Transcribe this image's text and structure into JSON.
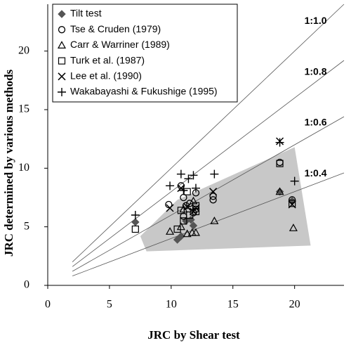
{
  "chart_data": {
    "type": "scatter",
    "x_label": "JRC by Shear test",
    "y_label": "JRC determined by various methods",
    "xlim": [
      0,
      24
    ],
    "ylim": [
      0,
      24
    ],
    "xticks": [
      0,
      5,
      10,
      15,
      20
    ],
    "yticks": [
      0,
      5,
      10,
      15,
      20
    ],
    "shaded_region": {
      "color": "#c8c8c8",
      "x": [
        8,
        7.5,
        10.5,
        20,
        21.3
      ],
      "y": [
        2.9,
        4.2,
        7.3,
        11.8,
        3.4
      ]
    },
    "reference_lines": [
      {
        "label": "1:1.0",
        "slope": 1.0,
        "x": [
          2,
          24
        ]
      },
      {
        "label": "1:0.8",
        "slope": 0.8,
        "x": [
          2,
          24
        ]
      },
      {
        "label": "1:0.6",
        "slope": 0.6,
        "x": [
          2,
          24
        ]
      },
      {
        "label": "1:0.4",
        "slope": 0.4,
        "x": [
          2,
          24
        ]
      }
    ],
    "series": [
      {
        "name": "Tilt test",
        "marker": "diamond",
        "color": "#555555",
        "x": [
          7.1,
          10.5,
          10.8,
          11.2,
          11.6,
          11.8,
          18.8,
          19.8
        ],
        "values": [
          5.4,
          3.9,
          4.2,
          5.5,
          5.6,
          5.1,
          8.0,
          7.2
        ]
      },
      {
        "name": "Tse & Cruden (1979)",
        "marker": "circle",
        "color": "#000000",
        "x": [
          9.8,
          10.8,
          11.0,
          11.2,
          11.5,
          12.0,
          12.0,
          13.4,
          13.4,
          18.8,
          19.8,
          11.0,
          11.8
        ],
        "values": [
          6.9,
          8.5,
          7.5,
          6.8,
          7.0,
          7.9,
          6.5,
          7.6,
          7.3,
          10.5,
          7.3,
          5.9,
          6.2
        ]
      },
      {
        "name": "Carr & Warriner (1989)",
        "marker": "triangle",
        "color": "#000000",
        "x": [
          9.9,
          10.8,
          11.3,
          11.7,
          12.0,
          13.5,
          18.8,
          19.9,
          11.0,
          11.8
        ],
        "values": [
          4.6,
          5.0,
          4.4,
          4.5,
          4.5,
          5.5,
          8.0,
          4.9,
          6.5,
          7.2
        ]
      },
      {
        "name": "Turk et al. (1987)",
        "marker": "square",
        "color": "#000000",
        "x": [
          7.1,
          10.5,
          10.8,
          11.0,
          11.5,
          12.0,
          12.0,
          18.8,
          19.8,
          11.3
        ],
        "values": [
          4.8,
          4.8,
          6.4,
          5.5,
          6.0,
          6.8,
          6.3,
          10.4,
          7.0,
          8.0
        ]
      },
      {
        "name": "Lee et al. (1990)",
        "marker": "x",
        "color": "#000000",
        "x": [
          9.9,
          10.8,
          11.3,
          11.8,
          12.0,
          13.4,
          18.8,
          19.8
        ],
        "values": [
          6.6,
          8.3,
          6.7,
          6.3,
          6.6,
          8.0,
          12.3,
          6.9
        ]
      },
      {
        "name": "Wakabayashi & Fukushige (1995)",
        "marker": "plus",
        "color": "#000000",
        "x": [
          7.1,
          9.9,
          10.8,
          11.4,
          11.8,
          12.0,
          13.5,
          18.8,
          20.0,
          11.0
        ],
        "values": [
          6.0,
          8.5,
          9.5,
          9.1,
          9.4,
          8.3,
          9.5,
          12.2,
          8.9,
          8.1
        ]
      }
    ]
  }
}
